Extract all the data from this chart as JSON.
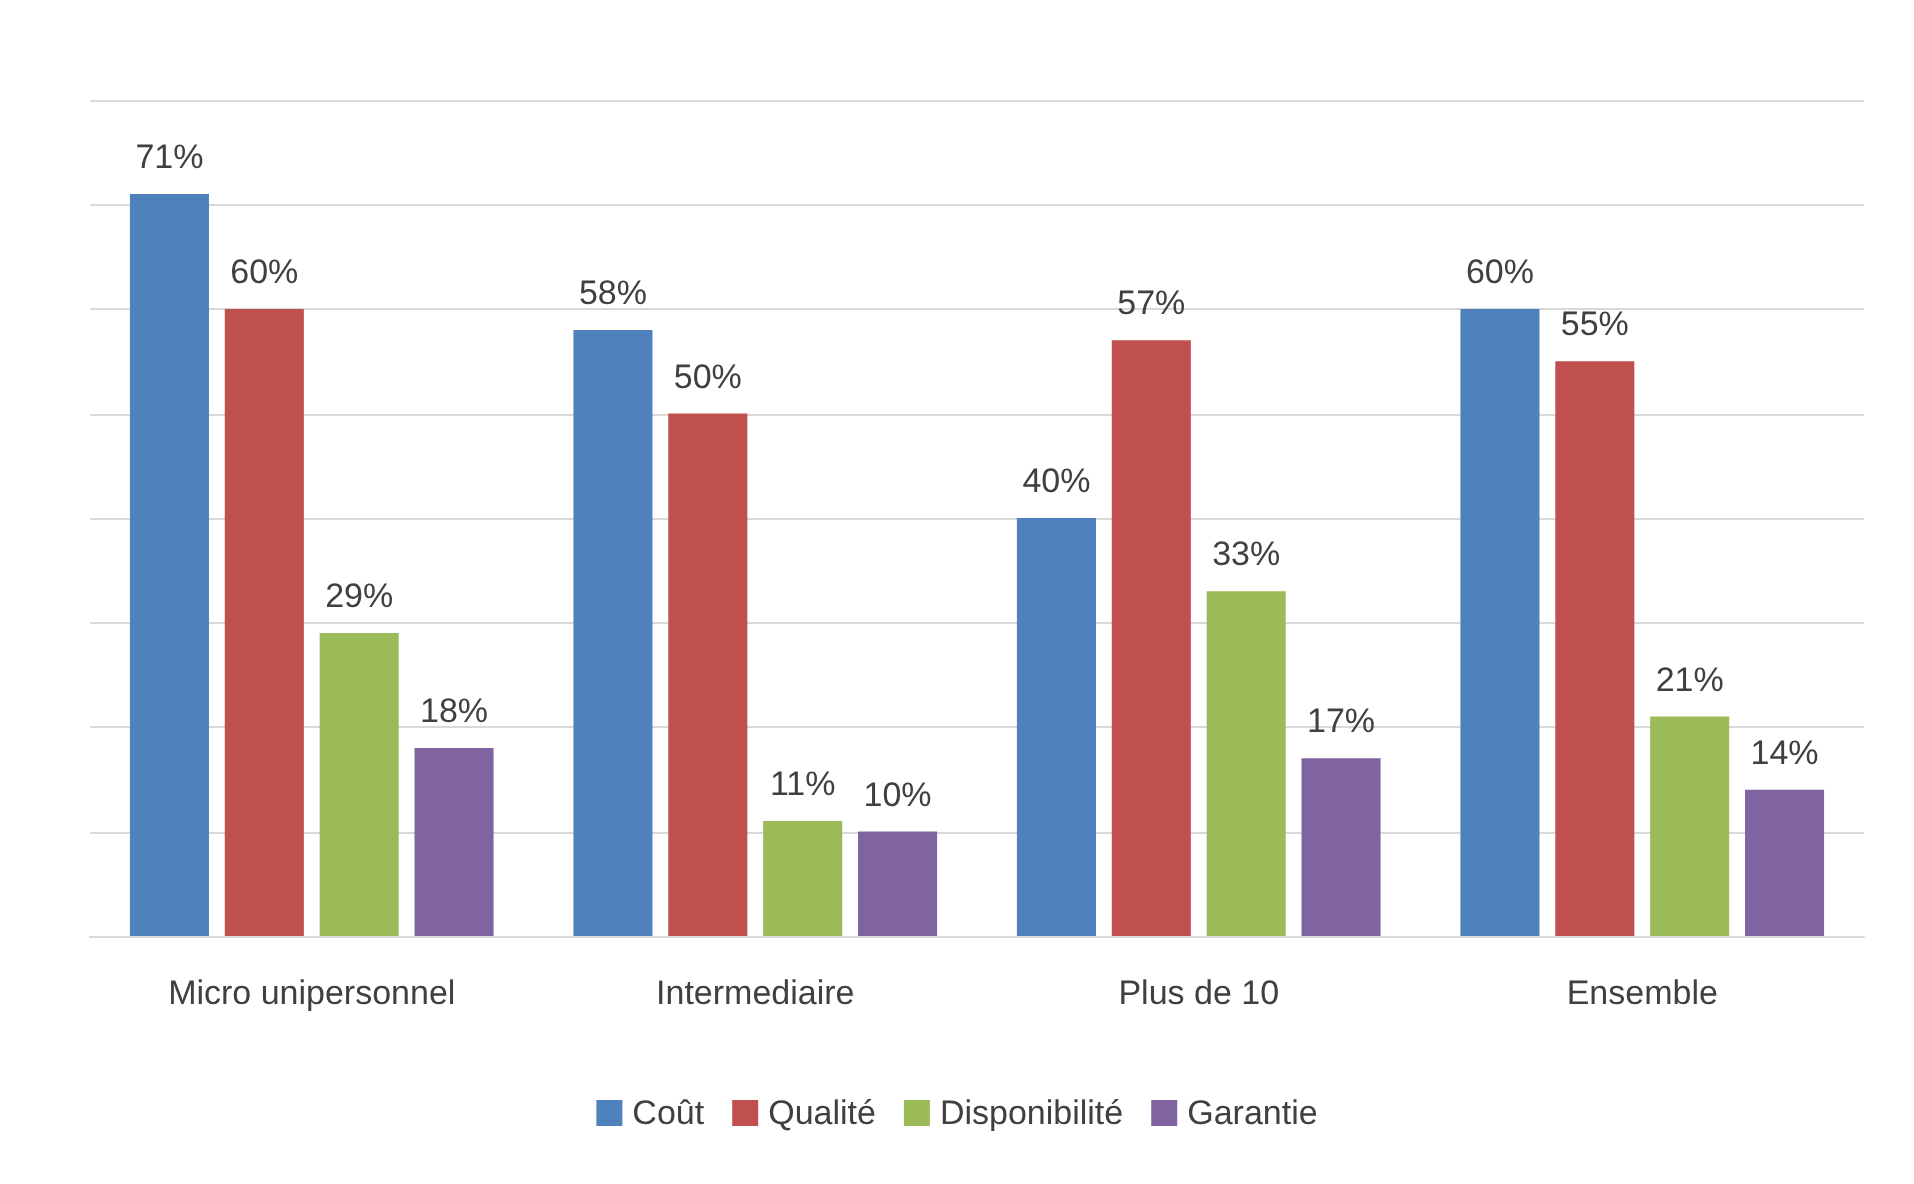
{
  "chart_data": {
    "type": "bar",
    "categories": [
      "Micro unipersonnel",
      "Intermediaire",
      "Plus de 10",
      "Ensemble"
    ],
    "series": [
      {
        "name": "Coût",
        "color": "#4f81bd",
        "values": [
          71,
          58,
          40,
          60
        ],
        "value_labels": [
          "71%",
          "58%",
          "40%",
          "60%"
        ]
      },
      {
        "name": "Qualité",
        "color": "#c0504d",
        "values": [
          60,
          50,
          57,
          55
        ],
        "value_labels": [
          "60%",
          "50%",
          "57%",
          "55%"
        ]
      },
      {
        "name": "Disponibilité",
        "color": "#9bbb59",
        "values": [
          29,
          11,
          33,
          21
        ],
        "value_labels": [
          "29%",
          "11%",
          "33%",
          "21%"
        ]
      },
      {
        "name": "Garantie",
        "color": "#8064a2",
        "values": [
          18,
          10,
          17,
          14
        ],
        "value_labels": [
          "18%",
          "10%",
          "17%",
          "14%"
        ]
      }
    ],
    "ylim": [
      0,
      80
    ],
    "yticks": [
      {
        "value": 0,
        "label": null
      },
      {
        "value": 10,
        "label": null
      },
      {
        "value": 20,
        "label": null
      },
      {
        "value": 30,
        "label": null
      },
      {
        "value": 40,
        "label": null
      },
      {
        "value": 50,
        "label": null
      },
      {
        "value": 60,
        "label": null
      },
      {
        "value": 70,
        "label": null
      },
      {
        "value": 80,
        "label": null
      }
    ],
    "grid": "y",
    "legend": "bottom",
    "tick_labels": "x"
  }
}
